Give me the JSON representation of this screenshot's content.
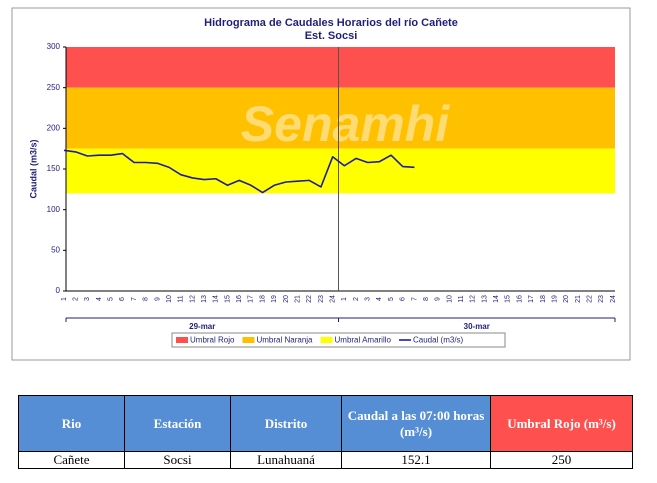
{
  "chart_data": {
    "type": "line",
    "title": "Hidrograma de Caudales Horarios del río Cañete",
    "subtitle": "Est. Socsi",
    "watermark": "Senamhi",
    "y_label": "Caudal  (m3/s)",
    "categories": [
      "1",
      "2",
      "3",
      "4",
      "5",
      "6",
      "7",
      "8",
      "9",
      "10",
      "11",
      "12",
      "13",
      "14",
      "15",
      "16",
      "17",
      "18",
      "19",
      "20",
      "21",
      "22",
      "23",
      "24",
      "1",
      "2",
      "3",
      "4",
      "5",
      "6",
      "7",
      "8",
      "9",
      "10",
      "11",
      "12",
      "13",
      "14",
      "15",
      "16",
      "17",
      "18",
      "19",
      "20",
      "21",
      "22",
      "23",
      "24"
    ],
    "category_groups": [
      "29-mar",
      "30-mar"
    ],
    "bands": [
      {
        "name": "Umbral Rojo",
        "color": "#ff5050",
        "from": 250,
        "to": 300
      },
      {
        "name": "Umbral Naranja",
        "color": "#ffc000",
        "from": 175,
        "to": 250
      },
      {
        "name": "Umbral Amarillo",
        "color": "#ffff00",
        "from": 120,
        "to": 175
      }
    ],
    "series": [
      {
        "name": "Caudal (m3/s)",
        "color": "#1c1ca8",
        "values": [
          173,
          171,
          166,
          167,
          167,
          169,
          158,
          158,
          157,
          152,
          143,
          139,
          137,
          138,
          130,
          136,
          130,
          121,
          130,
          134,
          135,
          136,
          128,
          165,
          154,
          163,
          158,
          159,
          167,
          153,
          152.1,
          null,
          null,
          null,
          null,
          null,
          null,
          null,
          null,
          null,
          null,
          null,
          null,
          null,
          null,
          null,
          null,
          null
        ]
      }
    ],
    "ylim": [
      0,
      300
    ],
    "yticks": [
      0,
      50,
      100,
      150,
      200,
      250,
      300
    ]
  },
  "table": {
    "header": [
      "Rio",
      "Estación",
      "Distrito",
      "Caudal a las 07:00 horas (m³/s)",
      "Umbral Rojo (m³/s)"
    ],
    "rows": [
      [
        "Cañete",
        "Socsi",
        "Lunahuaná",
        152.1,
        250
      ]
    ]
  }
}
